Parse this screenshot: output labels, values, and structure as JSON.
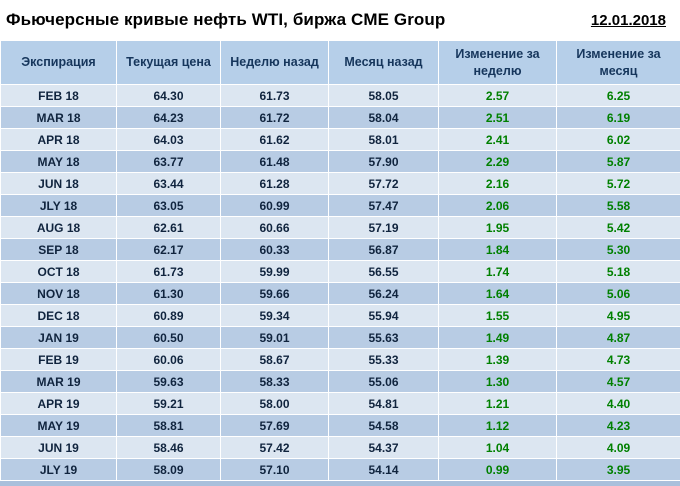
{
  "header": {
    "title": "Фьючерсные кривые нефть WTI, биржа CME Group",
    "date": "12.01.2018"
  },
  "colors": {
    "header_row": "#b6cfe9",
    "row_light": "#dce6f1",
    "row_dark": "#b8cce4",
    "change_text": "#008000",
    "data_text": "#10243e",
    "bottom_strip": "#a9c0dc"
  },
  "chart_data": {
    "type": "table",
    "title": "Фьючерсные кривые нефть WTI, биржа CME Group",
    "date": "12.01.2018",
    "columns": [
      "Экспирация",
      "Текущая цена",
      "Неделю назад",
      "Месяц назад",
      "Изменение за неделю",
      "Изменение за месяц"
    ],
    "rows": [
      [
        "FEB 18",
        "64.30",
        "61.73",
        "58.05",
        "2.57",
        "6.25"
      ],
      [
        "MAR 18",
        "64.23",
        "61.72",
        "58.04",
        "2.51",
        "6.19"
      ],
      [
        "APR 18",
        "64.03",
        "61.62",
        "58.01",
        "2.41",
        "6.02"
      ],
      [
        "MAY 18",
        "63.77",
        "61.48",
        "57.90",
        "2.29",
        "5.87"
      ],
      [
        "JUN 18",
        "63.44",
        "61.28",
        "57.72",
        "2.16",
        "5.72"
      ],
      [
        "JLY 18",
        "63.05",
        "60.99",
        "57.47",
        "2.06",
        "5.58"
      ],
      [
        "AUG 18",
        "62.61",
        "60.66",
        "57.19",
        "1.95",
        "5.42"
      ],
      [
        "SEP 18",
        "62.17",
        "60.33",
        "56.87",
        "1.84",
        "5.30"
      ],
      [
        "OCT 18",
        "61.73",
        "59.99",
        "56.55",
        "1.74",
        "5.18"
      ],
      [
        "NOV 18",
        "61.30",
        "59.66",
        "56.24",
        "1.64",
        "5.06"
      ],
      [
        "DEC 18",
        "60.89",
        "59.34",
        "55.94",
        "1.55",
        "4.95"
      ],
      [
        "JAN 19",
        "60.50",
        "59.01",
        "55.63",
        "1.49",
        "4.87"
      ],
      [
        "FEB 19",
        "60.06",
        "58.67",
        "55.33",
        "1.39",
        "4.73"
      ],
      [
        "MAR 19",
        "59.63",
        "58.33",
        "55.06",
        "1.30",
        "4.57"
      ],
      [
        "APR 19",
        "59.21",
        "58.00",
        "54.81",
        "1.21",
        "4.40"
      ],
      [
        "MAY 19",
        "58.81",
        "57.69",
        "54.58",
        "1.12",
        "4.23"
      ],
      [
        "JUN 19",
        "58.46",
        "57.42",
        "54.37",
        "1.04",
        "4.09"
      ],
      [
        "JLY 19",
        "58.09",
        "57.10",
        "54.14",
        "0.99",
        "3.95"
      ]
    ]
  }
}
